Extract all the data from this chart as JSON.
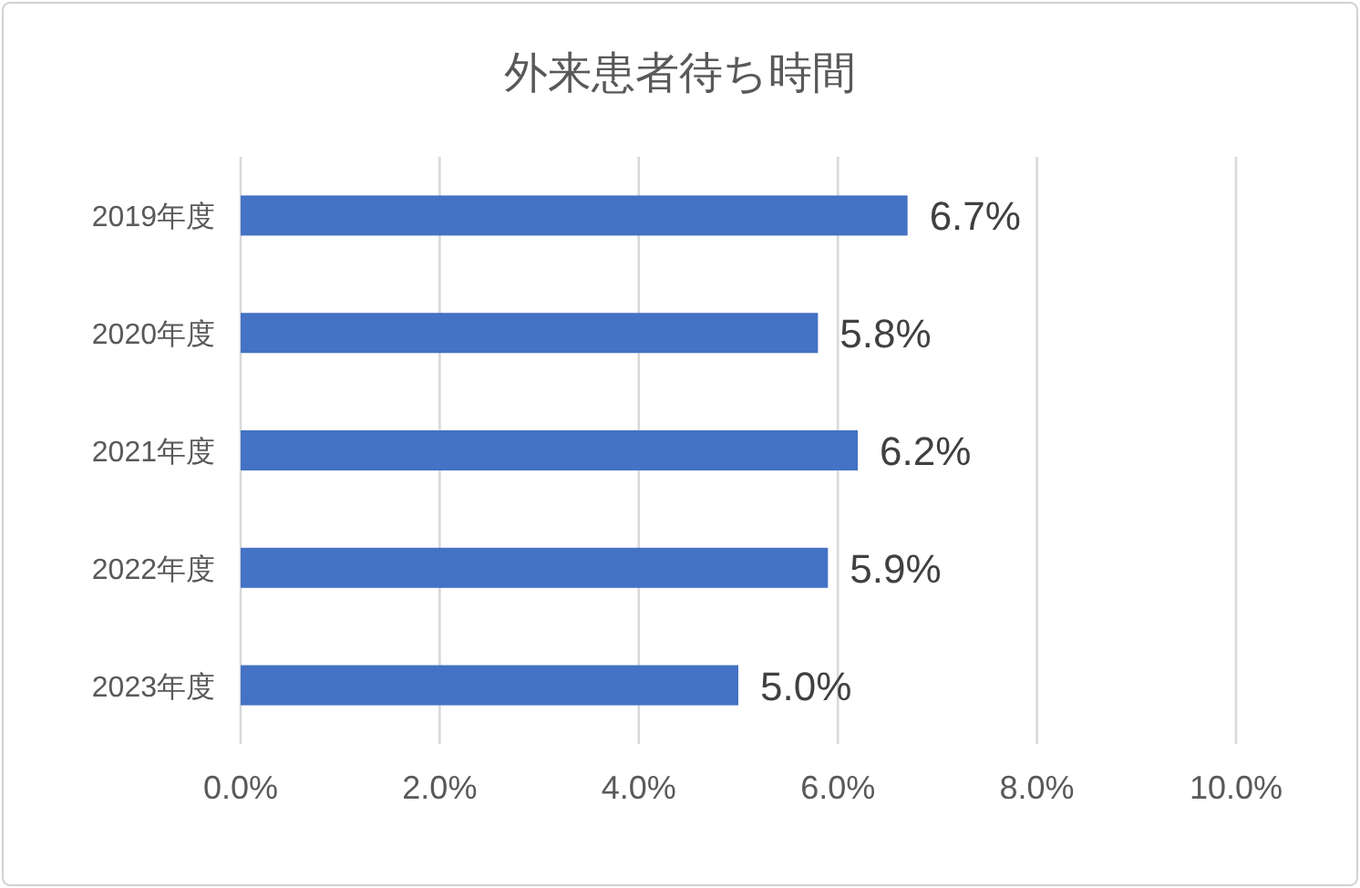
{
  "chart_data": {
    "type": "bar",
    "orientation": "horizontal",
    "title": "外来患者待ち時間",
    "categories": [
      "2019年度",
      "2020年度",
      "2021年度",
      "2022年度",
      "2023年度"
    ],
    "values": [
      6.7,
      5.8,
      6.2,
      5.9,
      5.0
    ],
    "value_labels": [
      "6.7%",
      "5.8%",
      "6.2%",
      "5.9%",
      "5.0%"
    ],
    "color": "#4472c4",
    "xlim": [
      0,
      10
    ],
    "xticks": [
      {
        "value": 0,
        "label": "0.0%"
      },
      {
        "value": 2,
        "label": "2.0%"
      },
      {
        "value": 4,
        "label": "4.0%"
      },
      {
        "value": 6,
        "label": "6.0%"
      },
      {
        "value": 8,
        "label": "8.0%"
      },
      {
        "value": 10,
        "label": "10.0%"
      }
    ],
    "grid": "x"
  }
}
